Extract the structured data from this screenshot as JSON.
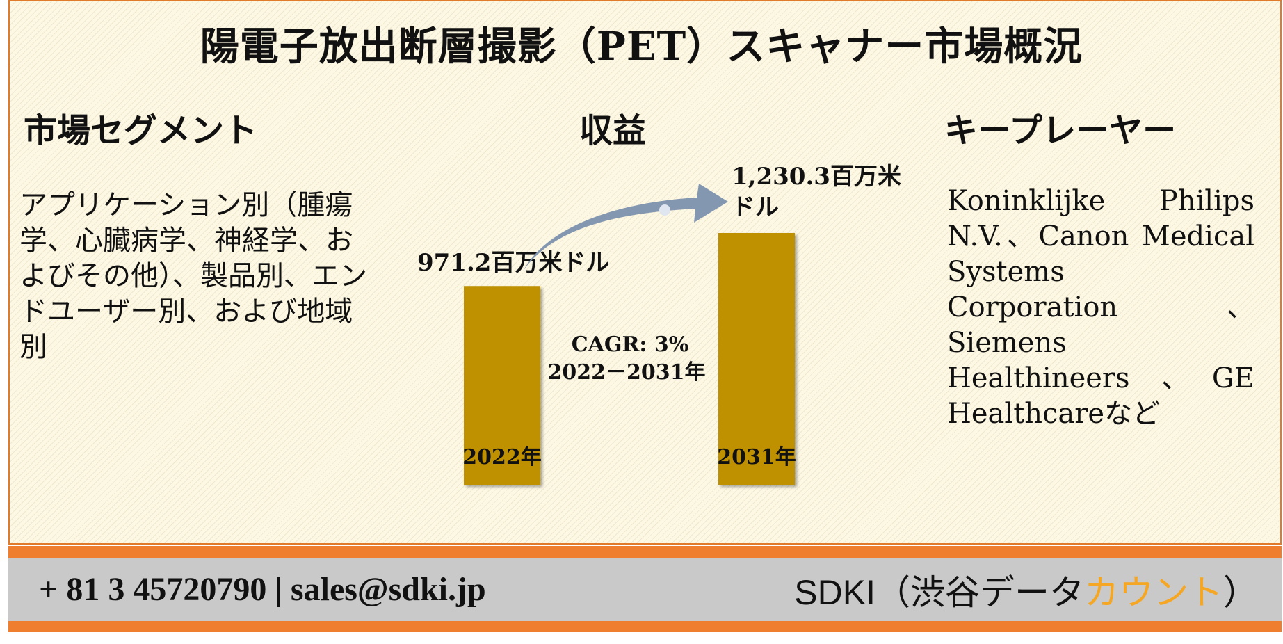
{
  "title": "陽電子放出断層撮影（PET）スキャナー市場概況",
  "segment": {
    "heading": "市場セグメント",
    "text": "アプリケーション別（腫瘍学、心臓病学、神経学、およびその他）、製品別、エンドユーザー別、および地域別"
  },
  "revenue": {
    "heading": "収益"
  },
  "players": {
    "heading": "キープレーヤー",
    "text": "Koninklijke Philips N.V.、Canon Medical Systems Corporation、Siemens Healthineers 、GE Healthcareなど"
  },
  "chart_data": {
    "type": "bar",
    "categories": [
      "2022年",
      "2031年"
    ],
    "values": [
      971.2,
      1230.3
    ],
    "value_labels": [
      "971.2百万米ドル",
      "1,230.3百万米ドル"
    ],
    "annotation_line1": "CAGR: 3%",
    "annotation_line2": "2022－2031年",
    "bar_color": "#bf9000",
    "arrow_color": "#8497b0"
  },
  "footer": {
    "contact": "+ 81 3 45720790 | sales@sdki.jp",
    "brand_prefix": "SDKI（渋谷データ",
    "brand_accent": "カウント",
    "brand_suffix": "）",
    "stripe_color": "#ef7f2e",
    "band_color": "#c9c9c9",
    "accent_color": "#f5a623"
  }
}
